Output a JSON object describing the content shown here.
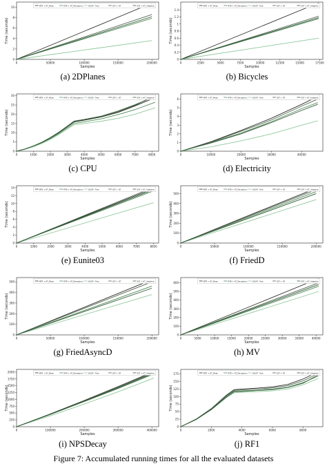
{
  "figure_caption": "Figure 7: Accumulated running times for all the evaluated datasets",
  "legend_labels": [
    "MTR + HT_Mean",
    "MTR + HT_Perceptron",
    "iSOUP - Tree",
    "SST + HT",
    "SST + HT_Adaptive"
  ],
  "colors": [
    "#2b2f28",
    "#4f8a56",
    "#8fc89a",
    "#536253",
    "#2e5b35"
  ],
  "chart_data": [
    {
      "type": "line",
      "caption": "(a) 2DPlanes",
      "xlabel": "Samples",
      "ylabel": "Time (seconds)",
      "xlim": [
        0,
        210000
      ],
      "ylim": [
        0,
        11
      ],
      "xticks": [
        0,
        50000,
        100000,
        150000,
        200000
      ],
      "yticks": [
        0,
        2,
        4,
        6,
        8,
        10
      ],
      "x": [
        0,
        200000
      ],
      "series": [
        {
          "values": [
            0,
            10.8
          ]
        },
        {
          "values": [
            0,
            7.9
          ]
        },
        {
          "values": [
            0,
            3.6
          ]
        },
        {
          "values": [
            0,
            8.6
          ]
        },
        {
          "values": [
            0,
            8.2
          ]
        }
      ]
    },
    {
      "type": "line",
      "caption": "(b) Bicycles",
      "xlabel": "Samples",
      "ylabel": "Time (seconds)",
      "xlim": [
        0,
        17900
      ],
      "ylim": [
        0,
        1.62
      ],
      "xticks": [
        0,
        2500,
        5000,
        7500,
        10000,
        12500,
        15000,
        17500
      ],
      "yticks": [
        0.0,
        0.2,
        0.4,
        0.6,
        0.8,
        1.0,
        1.2,
        1.4
      ],
      "x": [
        0,
        17379
      ],
      "series": [
        {
          "values": [
            0,
            1.6
          ]
        },
        {
          "values": [
            0,
            1.15
          ]
        },
        {
          "values": [
            0,
            0.6
          ]
        },
        {
          "values": [
            0,
            1.22
          ]
        },
        {
          "values": [
            0,
            1.18
          ]
        }
      ]
    },
    {
      "type": "line",
      "caption": "(c) CPU",
      "xlabel": "Samples",
      "ylabel": "Time (seconds)",
      "xlim": [
        0,
        8400
      ],
      "ylim": [
        0,
        31
      ],
      "xticks": [
        0,
        1000,
        2000,
        3000,
        4000,
        5000,
        6000,
        7000,
        8000
      ],
      "yticks": [
        0,
        5,
        10,
        15,
        20,
        25,
        30
      ],
      "x": [
        0,
        500,
        1000,
        1500,
        2000,
        2500,
        3000,
        3400,
        4000,
        5000,
        6000,
        7000,
        8192
      ],
      "series": [
        {
          "values": [
            0,
            1.2,
            2.8,
            4.8,
            7.2,
            10.0,
            13.2,
            15.8,
            16.8,
            18.5,
            21.0,
            24.5,
            29.0
          ]
        },
        {
          "values": [
            0,
            1.1,
            2.6,
            4.5,
            6.8,
            9.5,
            12.6,
            15.0,
            15.9,
            17.5,
            19.8,
            22.5,
            26.5
          ]
        },
        {
          "values": [
            0,
            1.0,
            2.4,
            4.2,
            6.4,
            9.0,
            12.0,
            14.3,
            15.0,
            16.2,
            17.8,
            20.0,
            23.5
          ]
        },
        {
          "values": [
            0,
            1.2,
            2.9,
            4.9,
            7.4,
            10.3,
            13.6,
            16.3,
            17.2,
            19.0,
            21.8,
            25.2,
            29.6
          ]
        },
        {
          "values": [
            0,
            1.2,
            2.8,
            4.8,
            7.3,
            10.1,
            13.4,
            16.0,
            17.0,
            18.7,
            21.4,
            24.8,
            30.2
          ]
        }
      ]
    },
    {
      "type": "line",
      "caption": "(d) Electricity",
      "xlabel": "Samples",
      "ylabel": "Time (seconds)",
      "xlim": [
        0,
        47000
      ],
      "ylim": [
        0,
        6.6
      ],
      "xticks": [
        0,
        10000,
        20000,
        30000,
        40000
      ],
      "yticks": [
        0,
        1,
        2,
        3,
        4,
        5,
        6
      ],
      "x": [
        0,
        10000,
        20000,
        30000,
        40000,
        45312
      ],
      "series": [
        {
          "values": [
            0,
            1.1,
            2.4,
            3.8,
            5.4,
            6.3
          ]
        },
        {
          "values": [
            0,
            1.0,
            2.1,
            3.4,
            4.9,
            5.6
          ]
        },
        {
          "values": [
            0,
            0.5,
            1.2,
            2.0,
            3.0,
            3.5
          ]
        },
        {
          "values": [
            0,
            1.05,
            2.3,
            3.6,
            5.2,
            6.0
          ]
        },
        {
          "values": [
            0,
            0.95,
            2.0,
            3.3,
            4.7,
            5.4
          ]
        }
      ]
    },
    {
      "type": "line",
      "caption": "(e) Eunite03",
      "xlabel": "Samples",
      "ylabel": "Time (seconds)",
      "xlim": [
        0,
        8300
      ],
      "ylim": [
        0,
        14.5
      ],
      "xticks": [
        0,
        1000,
        2000,
        3000,
        4000,
        5000,
        6000,
        7000,
        8000
      ],
      "yticks": [
        0,
        2,
        4,
        6,
        8,
        10,
        12,
        14
      ],
      "x": [
        0,
        8000
      ],
      "series": [
        {
          "values": [
            0,
            13.8
          ]
        },
        {
          "values": [
            0,
            13.2
          ]
        },
        {
          "values": [
            0,
            10.2
          ]
        },
        {
          "values": [
            0,
            14.1
          ]
        },
        {
          "values": [
            0,
            13.5
          ]
        }
      ]
    },
    {
      "type": "line",
      "caption": "(f) FriedD",
      "xlabel": "Samples",
      "ylabel": "Time (seconds)",
      "xlim": [
        0,
        210000
      ],
      "ylim": [
        0,
        580
      ],
      "xticks": [
        0,
        50000,
        100000,
        150000,
        200000
      ],
      "yticks": [
        0,
        100,
        200,
        300,
        400,
        500
      ],
      "x": [
        0,
        200000
      ],
      "series": [
        {
          "values": [
            0,
            555
          ]
        },
        {
          "values": [
            0,
            520
          ]
        },
        {
          "values": [
            0,
            440
          ]
        },
        {
          "values": [
            0,
            540
          ]
        },
        {
          "values": [
            0,
            500
          ]
        }
      ]
    },
    {
      "type": "line",
      "caption": "(g) FriedAsyncD",
      "xlabel": "Samples",
      "ylabel": "Time (seconds)",
      "xlim": [
        0,
        210000
      ],
      "ylim": [
        0,
        540
      ],
      "xticks": [
        0,
        50000,
        100000,
        150000,
        200000
      ],
      "yticks": [
        0,
        100,
        200,
        300,
        400,
        500
      ],
      "x": [
        0,
        200000
      ],
      "series": [
        {
          "values": [
            0,
            520
          ]
        },
        {
          "values": [
            0,
            460
          ]
        },
        {
          "values": [
            0,
            380
          ]
        },
        {
          "values": [
            0,
            500
          ]
        },
        {
          "values": [
            0,
            440
          ]
        }
      ]
    },
    {
      "type": "line",
      "caption": "(h) MV",
      "xlabel": "Samples",
      "ylabel": "Time (seconds)",
      "xlim": [
        0,
        42000
      ],
      "ylim": [
        0,
        660
      ],
      "xticks": [
        0,
        5000,
        10000,
        15000,
        20000,
        25000,
        30000,
        35000,
        40000
      ],
      "yticks": [
        0,
        100,
        200,
        300,
        400,
        500,
        600
      ],
      "x": [
        0,
        40768
      ],
      "series": [
        {
          "values": [
            0,
            650
          ]
        },
        {
          "values": [
            0,
            560
          ]
        },
        {
          "values": [
            0,
            500
          ]
        },
        {
          "values": [
            0,
            600
          ]
        },
        {
          "values": [
            0,
            580
          ]
        }
      ]
    },
    {
      "type": "line",
      "caption": "(i) NPSDecay",
      "xlabel": "Samples",
      "ylabel": "Time (seconds)",
      "xlim": [
        0,
        420000
      ],
      "ylim": [
        0,
        2100
      ],
      "xticks": [
        0,
        100000,
        200000,
        300000,
        400000
      ],
      "yticks": [
        0,
        250,
        500,
        750,
        1000,
        1250,
        1500,
        1750,
        2000
      ],
      "x": [
        0,
        100000,
        200000,
        300000,
        405000
      ],
      "series": [
        {
          "values": [
            0,
            470,
            960,
            1470,
            2020
          ]
        },
        {
          "values": [
            0,
            450,
            920,
            1400,
            1930
          ]
        },
        {
          "values": [
            0,
            400,
            830,
            1280,
            1780
          ]
        },
        {
          "values": [
            0,
            460,
            940,
            1440,
            1990
          ]
        },
        {
          "values": [
            0,
            455,
            930,
            1420,
            1960
          ]
        }
      ]
    },
    {
      "type": "line",
      "caption": "(j) RF1",
      "xlabel": "Samples",
      "ylabel": "Time (seconds)",
      "xlim": [
        0,
        9300
      ],
      "ylim": [
        0,
        190
      ],
      "xticks": [
        0,
        2000,
        4000,
        6000,
        8000
      ],
      "yticks": [
        0,
        25,
        50,
        75,
        100,
        125,
        150,
        175
      ],
      "x": [
        0,
        1000,
        2000,
        3000,
        3500,
        4000,
        5000,
        6000,
        7000,
        8000,
        9000
      ],
      "series": [
        {
          "values": [
            0,
            25,
            60,
            105,
            123,
            125,
            128,
            132,
            140,
            158,
            182
          ]
        },
        {
          "values": [
            0,
            24,
            58,
            100,
            118,
            119,
            121,
            125,
            131,
            146,
            168
          ]
        },
        {
          "values": [
            0,
            23,
            56,
            97,
            113,
            114,
            116,
            119,
            125,
            139,
            160
          ]
        },
        {
          "values": [
            0,
            24,
            59,
            103,
            121,
            122,
            125,
            129,
            136,
            152,
            176
          ]
        },
        {
          "values": [
            0,
            24,
            57,
            99,
            116,
            117,
            120,
            123,
            130,
            144,
            172
          ]
        }
      ]
    }
  ]
}
